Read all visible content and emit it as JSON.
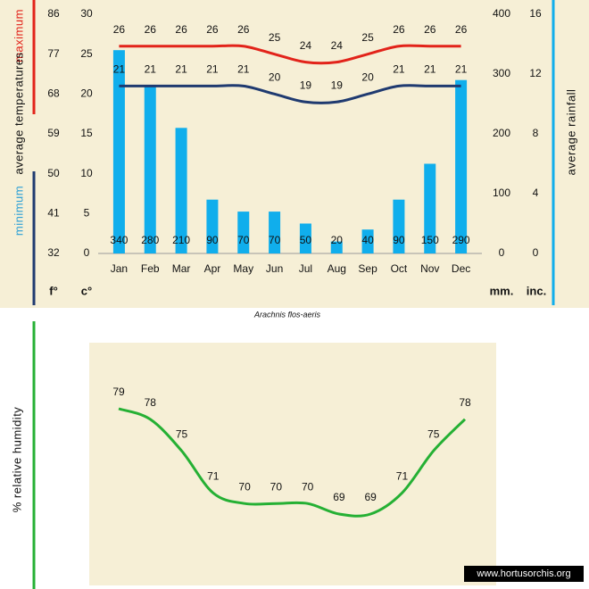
{
  "chart_data": [
    {
      "type": "combo",
      "categories": [
        "Jan",
        "Feb",
        "Mar",
        "Apr",
        "May",
        "Jun",
        "Jul",
        "Aug",
        "Sep",
        "Oct",
        "Nov",
        "Dec"
      ],
      "series": [
        {
          "type": "bar",
          "axis": "y2",
          "color": "#10aeec",
          "values": [
            340,
            280,
            210,
            90,
            70,
            70,
            50,
            20,
            40,
            90,
            150,
            290
          ]
        },
        {
          "type": "line",
          "name": "maximum",
          "color": "#e2231a",
          "values": [
            26,
            26,
            26,
            26,
            26,
            25,
            24,
            24,
            25,
            26,
            26,
            26
          ]
        },
        {
          "type": "line",
          "name": "minimum",
          "color": "#1f3a70",
          "values": [
            21,
            21,
            21,
            21,
            21,
            20,
            19,
            19,
            20,
            21,
            21,
            21
          ]
        }
      ],
      "ylim": [
        0,
        30
      ],
      "yticks": [
        0,
        5,
        10,
        15,
        20,
        25,
        30
      ],
      "y_unit": "c°",
      "y_label": "average temperatures",
      "y3lim": [
        32,
        86
      ],
      "y3ticks": [
        32,
        41,
        50,
        59,
        68,
        77,
        86
      ],
      "y3_unit": "f°",
      "y2lim": [
        0,
        400
      ],
      "y2ticks": [
        0,
        100,
        200,
        300,
        400
      ],
      "y2_unit": "mm.",
      "y2_label": "average rainfall",
      "y4lim": [
        0,
        16
      ],
      "y4ticks": [
        0,
        4,
        8,
        12,
        16
      ],
      "y4_unit": "inc.",
      "caption": "Arachnis flos-aeris"
    },
    {
      "type": "line",
      "y_label": "% relative humidity",
      "color": "#25b034",
      "values": [
        79,
        78,
        75,
        71,
        70,
        70,
        70,
        69,
        69,
        71,
        75,
        78
      ],
      "ylim": [
        64,
        84
      ]
    }
  ],
  "watermark": "www.hortusorchis.org"
}
